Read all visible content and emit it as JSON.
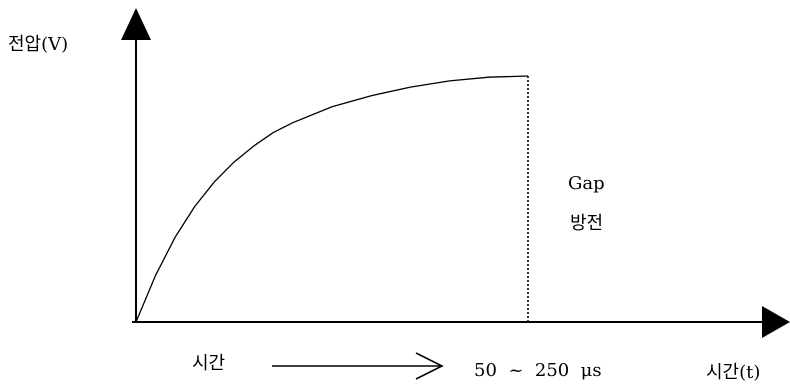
{
  "chart_data": {
    "type": "line",
    "ylabel": "전압(V)",
    "xlabel": "시간(t)",
    "series": [
      {
        "values": [
          [
            0,
            0
          ],
          [
            0.05,
            0.19
          ],
          [
            0.1,
            0.345
          ],
          [
            0.15,
            0.47
          ],
          [
            0.2,
            0.57
          ],
          [
            0.25,
            0.65
          ],
          [
            0.3,
            0.715
          ],
          [
            0.35,
            0.77
          ],
          [
            0.4,
            0.81
          ],
          [
            0.5,
            0.875
          ],
          [
            0.6,
            0.92
          ],
          [
            0.7,
            0.955
          ],
          [
            0.8,
            0.98
          ],
          [
            0.9,
            0.995
          ],
          [
            1.0,
            1.0
          ]
        ]
      }
    ],
    "cutoff_line": {
      "x": 1.0,
      "style": "dotted"
    },
    "annotations": {
      "gap_line1": "Gap",
      "gap_line2": "방전",
      "time_word": "시간",
      "duration": "50  ~  250  μs"
    },
    "grid": false,
    "colors": {
      "line": "#000000",
      "axis": "#000000"
    }
  }
}
